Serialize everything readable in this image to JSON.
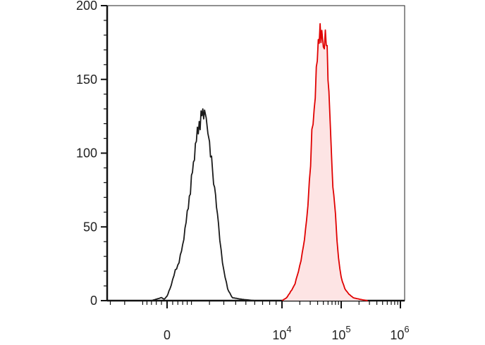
{
  "chart_data": {
    "type": "area",
    "title": "",
    "xlabel": "",
    "ylabel": "",
    "x_scale": "biexponential",
    "x_tick_labels": [
      {
        "base": "0",
        "exp": ""
      },
      {
        "base": "10",
        "exp": "4"
      },
      {
        "base": "10",
        "exp": "5"
      },
      {
        "base": "10",
        "exp": "6"
      }
    ],
    "y_ticks": [
      0,
      50,
      100,
      150,
      200
    ],
    "ylim": [
      0,
      200
    ],
    "grid": false,
    "series": [
      {
        "color": "#1a1a1a",
        "fill": "none",
        "points": [
          [
            -600,
            0
          ],
          [
            -400,
            1
          ],
          [
            -200,
            2
          ],
          [
            -100,
            1
          ],
          [
            0,
            3
          ],
          [
            100,
            8
          ],
          [
            200,
            14
          ],
          [
            300,
            20
          ],
          [
            400,
            24
          ],
          [
            500,
            30
          ],
          [
            600,
            38
          ],
          [
            700,
            48
          ],
          [
            800,
            58
          ],
          [
            900,
            70
          ],
          [
            1000,
            82
          ],
          [
            1100,
            94
          ],
          [
            1200,
            104
          ],
          [
            1300,
            112
          ],
          [
            1400,
            120
          ],
          [
            1500,
            124
          ],
          [
            1600,
            130
          ],
          [
            1700,
            126
          ],
          [
            1800,
            118
          ],
          [
            1900,
            112
          ],
          [
            2000,
            104
          ],
          [
            2200,
            88
          ],
          [
            2400,
            70
          ],
          [
            2600,
            50
          ],
          [
            2800,
            34
          ],
          [
            3000,
            20
          ],
          [
            3300,
            8
          ],
          [
            3700,
            2
          ],
          [
            4500,
            1
          ],
          [
            6000,
            0
          ]
        ]
      },
      {
        "color": "#e00000",
        "fill": "#fde4e4",
        "points": [
          [
            10000,
            0
          ],
          [
            12000,
            2
          ],
          [
            14000,
            6
          ],
          [
            16000,
            10
          ],
          [
            18000,
            16
          ],
          [
            20000,
            24
          ],
          [
            23000,
            36
          ],
          [
            26000,
            52
          ],
          [
            29000,
            80
          ],
          [
            32000,
            112
          ],
          [
            35000,
            130
          ],
          [
            38000,
            155
          ],
          [
            41000,
            170
          ],
          [
            44000,
            186
          ],
          [
            47000,
            178
          ],
          [
            50000,
            172
          ],
          [
            54000,
            180
          ],
          [
            58000,
            166
          ],
          [
            62000,
            140
          ],
          [
            66000,
            112
          ],
          [
            70000,
            90
          ],
          [
            75000,
            70
          ],
          [
            80000,
            56
          ],
          [
            85000,
            40
          ],
          [
            90000,
            28
          ],
          [
            100000,
            16
          ],
          [
            115000,
            8
          ],
          [
            130000,
            5
          ],
          [
            160000,
            2
          ],
          [
            200000,
            1
          ],
          [
            280000,
            0
          ]
        ]
      }
    ]
  }
}
